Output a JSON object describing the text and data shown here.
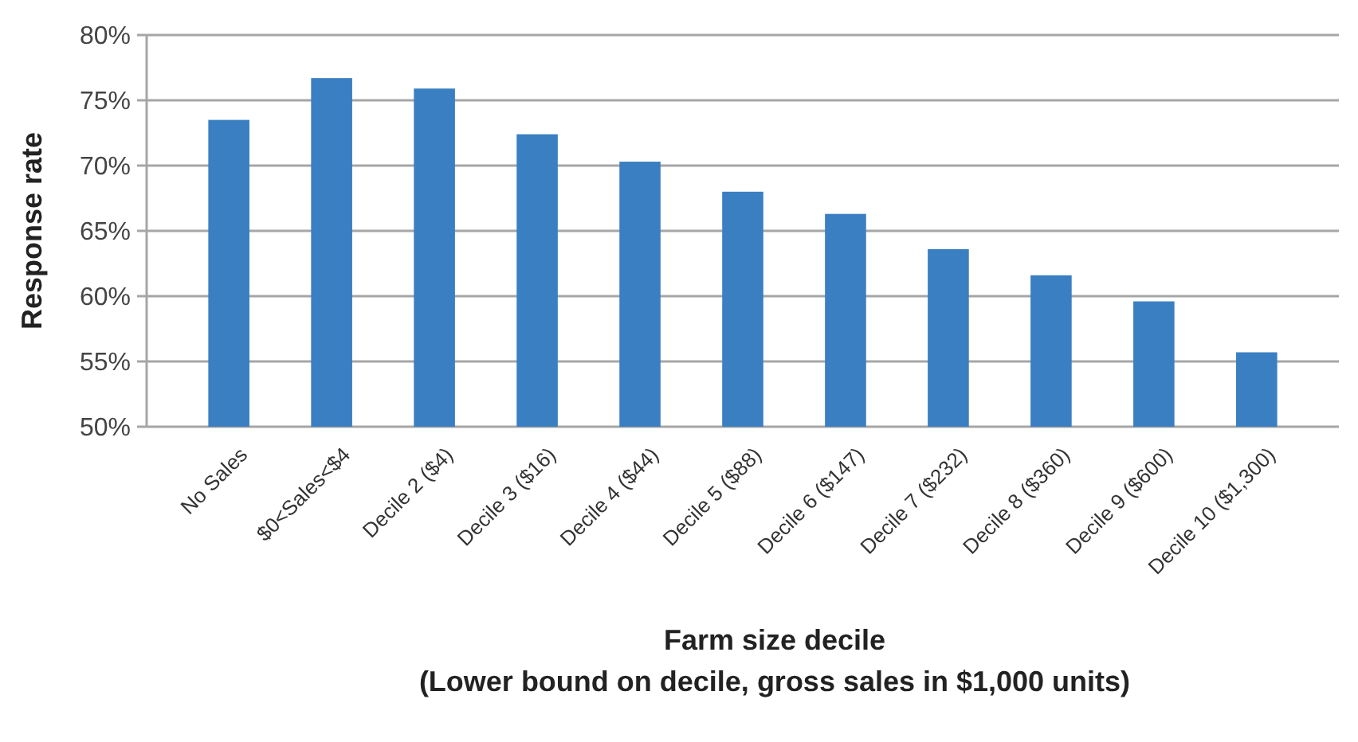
{
  "chart_data": {
    "type": "bar",
    "xlabel": "Farm size decile\n(Lower bound on decile, gross sales in $1,000 units)",
    "ylabel": "Response rate",
    "categories": [
      "No Sales",
      "$0<Sales<$4",
      "Decile 2 ($4)",
      "Decile 3 ($16)",
      "Decile 4 ($44)",
      "Decile 5 ($88)",
      "Decile 6 ($147)",
      "Decile 7 ($232)",
      "Decile 8 ($360)",
      "Decile 9 ($600)",
      "Decile 10 ($1,300)"
    ],
    "values": [
      73.5,
      76.7,
      75.9,
      72.4,
      70.3,
      68.0,
      66.3,
      63.6,
      61.6,
      59.6,
      55.7
    ],
    "color": "#3a7fc1",
    "ylim": [
      50,
      80
    ],
    "yticks": [
      {
        "value": 50,
        "label": "50%"
      },
      {
        "value": 55,
        "label": "55%"
      },
      {
        "value": 60,
        "label": "60%"
      },
      {
        "value": 65,
        "label": "65%"
      },
      {
        "value": 70,
        "label": "70%"
      },
      {
        "value": 75,
        "label": "75%"
      },
      {
        "value": 80,
        "label": "80%"
      }
    ],
    "grid": "y"
  }
}
